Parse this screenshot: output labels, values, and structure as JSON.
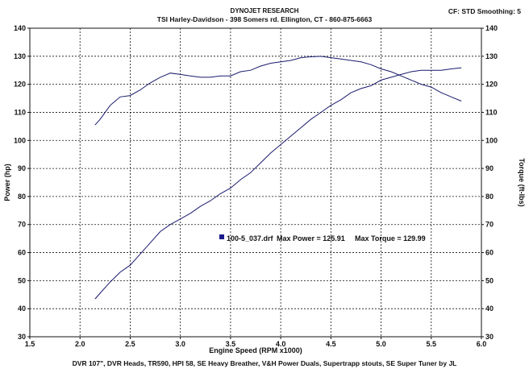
{
  "header": {
    "lab": "DYNOJET RESEARCH",
    "shop": "TSI Harley-Davidson - 398 Somers rd. Ellington, CT - 860-875-6663",
    "settings": "CF: STD  Smoothing: 5"
  },
  "footer": {
    "build": "DVR 107\", DVR Heads, TR590, HPI 58, SE Heavy Breather, V&H Power Duals, Supertrapp stouts, SE Super Tuner by JL"
  },
  "legend": {
    "file": "100-5_037.drf",
    "max_power_label": "Max Power = 125.91",
    "max_torque_label": "Max Torque = 129.99",
    "marker_color": "#1a1a8c"
  },
  "chart_data": {
    "type": "line",
    "xlabel": "Engine Speed (RPM x1000)",
    "ylabel_left": "Power (hp)",
    "ylabel_right": "Torque (ft-lbs)",
    "xlim": [
      1.5,
      6.0
    ],
    "ylim": [
      30,
      140
    ],
    "x_ticks": [
      "1.5",
      "2.0",
      "2.5",
      "3.0",
      "3.5",
      "4.0",
      "4.5",
      "5.0",
      "5.5",
      "6.0"
    ],
    "y_ticks": [
      "30",
      "40",
      "50",
      "60",
      "70",
      "80",
      "90",
      "100",
      "110",
      "120",
      "130",
      "140"
    ],
    "grid": true,
    "line_color": "#1a1a6e",
    "series": [
      {
        "name": "Power",
        "x": [
          2.15,
          2.2,
          2.3,
          2.4,
          2.5,
          2.6,
          2.7,
          2.8,
          2.9,
          3.0,
          3.1,
          3.2,
          3.3,
          3.4,
          3.5,
          3.6,
          3.7,
          3.8,
          3.9,
          4.0,
          4.1,
          4.2,
          4.3,
          4.4,
          4.5,
          4.6,
          4.7,
          4.8,
          4.9,
          5.0,
          5.1,
          5.2,
          5.3,
          5.4,
          5.5,
          5.6,
          5.7,
          5.8
        ],
        "values": [
          43.5,
          45.5,
          49.5,
          53,
          55.5,
          59.5,
          63.5,
          67.5,
          70,
          72,
          74,
          76.5,
          78.5,
          81,
          83,
          86,
          88.5,
          92,
          95.5,
          98.5,
          101.5,
          104.5,
          107.5,
          110,
          112.5,
          114.5,
          117,
          118.5,
          119.5,
          121.5,
          122.5,
          123.5,
          124.5,
          125,
          125,
          125,
          125.5,
          125.91
        ]
      },
      {
        "name": "Torque",
        "x": [
          2.15,
          2.2,
          2.3,
          2.4,
          2.5,
          2.6,
          2.7,
          2.8,
          2.9,
          3.0,
          3.1,
          3.2,
          3.3,
          3.4,
          3.5,
          3.6,
          3.7,
          3.8,
          3.9,
          4.0,
          4.1,
          4.2,
          4.3,
          4.4,
          4.5,
          4.6,
          4.7,
          4.8,
          4.9,
          5.0,
          5.1,
          5.2,
          5.3,
          5.4,
          5.5,
          5.6,
          5.7,
          5.8
        ],
        "values": [
          105.5,
          107.5,
          112.5,
          115.5,
          116,
          118,
          120.5,
          122.5,
          124,
          123.5,
          123,
          122.5,
          122.5,
          123,
          123,
          124.5,
          125,
          126.5,
          127.5,
          128,
          128.5,
          129.5,
          129.8,
          129.99,
          129.5,
          129,
          128.5,
          128,
          127,
          125.5,
          124.5,
          123,
          121.5,
          120,
          119,
          117,
          115.5,
          114
        ]
      }
    ]
  }
}
